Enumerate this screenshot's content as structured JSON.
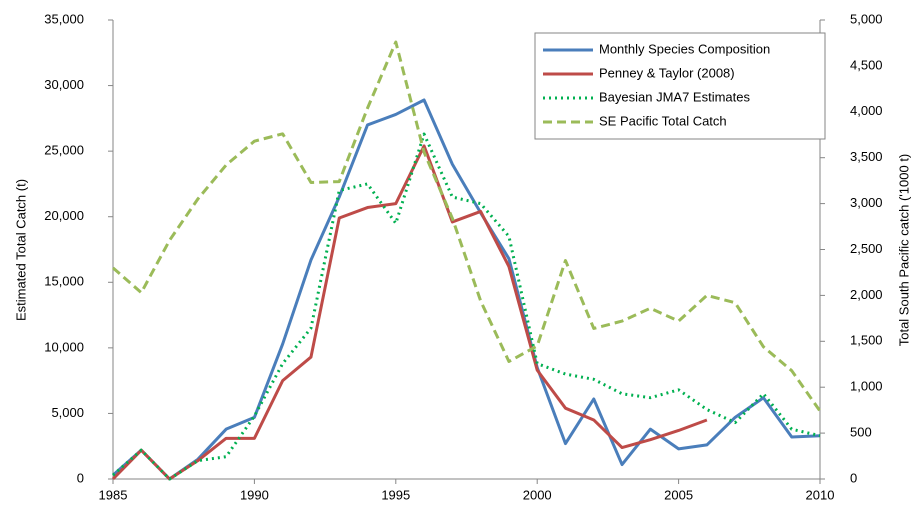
{
  "chart_data": {
    "type": "line",
    "y_label": "Estimated Total Catch (t)",
    "y2_label": "Total South Pacific catch ('1000 t)",
    "x": [
      1985,
      1986,
      1987,
      1988,
      1989,
      1990,
      1991,
      1992,
      1993,
      1994,
      1995,
      1996,
      1997,
      1998,
      1999,
      2000,
      2001,
      2002,
      2003,
      2004,
      2005,
      2006,
      2007,
      2008,
      2009,
      2010
    ],
    "series": [
      {
        "name": "Monthly Species Composition",
        "color": "#4a7ebb",
        "dash": "solid",
        "values": [
          300,
          2200,
          0,
          1500,
          3800,
          4700,
          10300,
          16700,
          21500,
          27000,
          27800,
          28900,
          24000,
          20300,
          16800,
          8500,
          2700,
          6100,
          1100,
          3800,
          2300,
          2600,
          4700,
          6200,
          3200,
          3300
        ]
      },
      {
        "name": "Penney & Taylor (2008)",
        "color": "#be4b48",
        "dash": "solid",
        "values": [
          0,
          2200,
          0,
          1400,
          3100,
          3100,
          7500,
          9300,
          19900,
          20700,
          21000,
          25400,
          19600,
          20400,
          16200,
          8300,
          5400,
          4500,
          2400,
          3000,
          3700,
          4500,
          null,
          null,
          null,
          null
        ]
      },
      {
        "name": "Bayesian JMA7 Estimates",
        "color": "#00b050",
        "dash": "dotted",
        "values": [
          300,
          2200,
          0,
          1400,
          1700,
          4800,
          8800,
          11500,
          22000,
          22500,
          19500,
          26300,
          21500,
          21000,
          18500,
          8800,
          8000,
          7600,
          6500,
          6200,
          6800,
          5300,
          4300,
          6500,
          3800,
          3300
        ]
      },
      {
        "name": "SE Pacific Total Catch",
        "color": "#9bbb59",
        "dash": "dashed",
        "axis": "y2",
        "values": [
          2300,
          2030,
          2600,
          3050,
          3420,
          3680,
          3760,
          3230,
          3240,
          4040,
          4760,
          3560,
          2840,
          1940,
          1280,
          1450,
          2380,
          1640,
          1720,
          1860,
          1720,
          2000,
          1920,
          1440,
          1180,
          740
        ]
      }
    ],
    "xlim": [
      1985,
      2010
    ],
    "xticks": [
      1985,
      1990,
      1995,
      2000,
      2005,
      2010
    ],
    "ylim": [
      0,
      35000
    ],
    "yticks": [
      0,
      {
        "value": 5000,
        "label": "5,000"
      },
      {
        "value": 10000,
        "label": "10,000"
      },
      {
        "value": 15000,
        "label": "15,000"
      },
      {
        "value": 20000,
        "label": "20,000"
      },
      {
        "value": 25000,
        "label": "25,000"
      },
      {
        "value": 30000,
        "label": "30,000"
      },
      {
        "value": 35000,
        "label": "35,000"
      }
    ],
    "y2lim": [
      0,
      5000
    ],
    "y2ticks": [
      0,
      500,
      {
        "value": 1000,
        "label": "1,000"
      },
      {
        "value": 1500,
        "label": "1,500"
      },
      {
        "value": 2000,
        "label": "2,000"
      },
      {
        "value": 2500,
        "label": "2,500"
      },
      {
        "value": 3000,
        "label": "3,000"
      },
      {
        "value": 3500,
        "label": "3,500"
      },
      {
        "value": 4000,
        "label": "4,000"
      },
      {
        "value": 4500,
        "label": "4,500"
      },
      {
        "value": 5000,
        "label": "5,000"
      }
    ],
    "legend": "upper right",
    "grid": false
  }
}
